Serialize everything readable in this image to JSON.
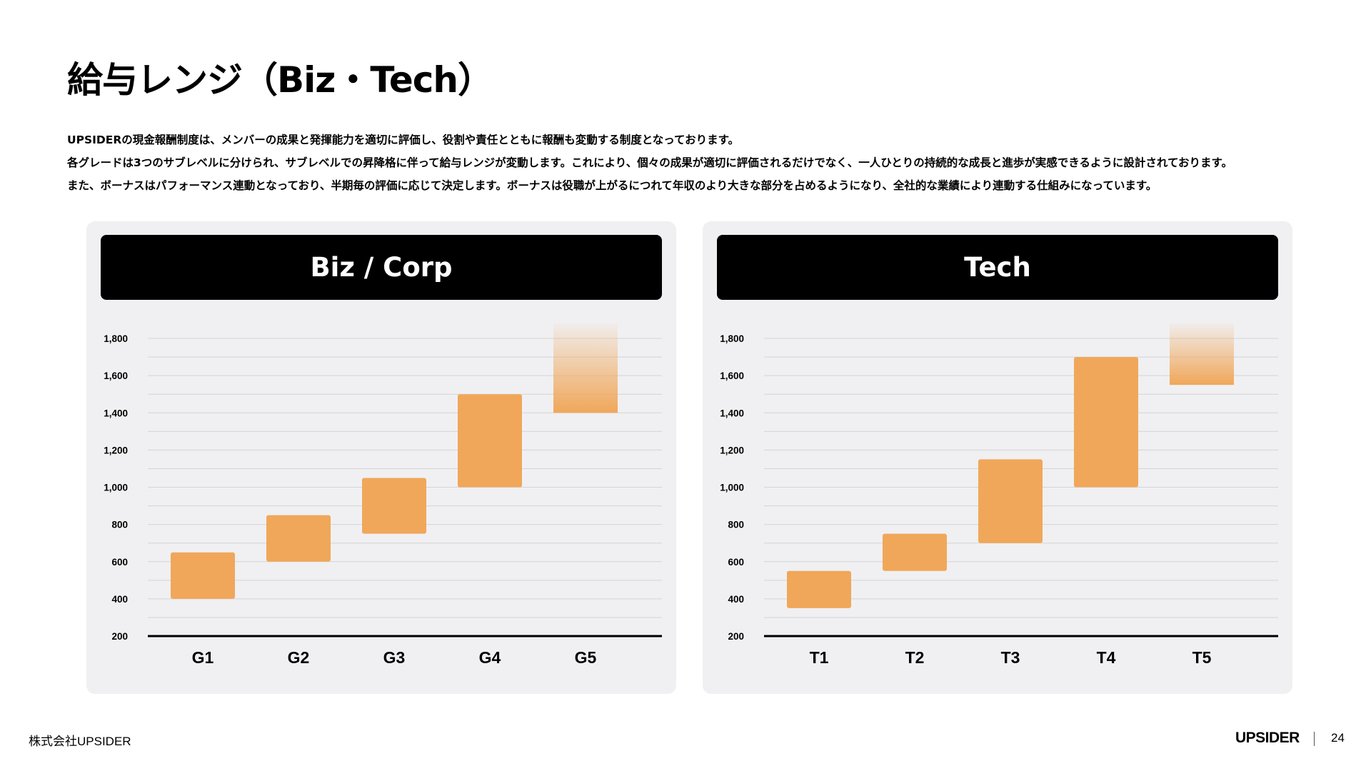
{
  "page": {
    "title": "給与レンジ（Biz・Tech）",
    "description": [
      "UPSIDERの現金報酬制度は、メンバーの成果と発揮能力を適切に評価し、役割や責任とともに報酬も変動する制度となっております。",
      "各グレードは3つのサブレベルに分けられ、サブレベルでの昇降格に伴って給与レンジが変動します。これにより、個々の成果が適切に評価されるだけでなく、一人ひとりの持続的な成長と進歩が実感できるように設計されております。",
      "また、ボーナスはパフォーマンス連動となっており、半期毎の評価に応じて決定します。ボーナスは役職が上がるにつれて年収のより大きな部分を占めるようになり、全社的な業績により連動する仕組みになっています。"
    ],
    "footer": {
      "company": "株式会社UPSIDER",
      "logo": "UPSIDER",
      "page_number": "24"
    }
  },
  "colors": {
    "bar": "#f0a75a",
    "panel_bg": "#f0f0f2",
    "header_bg": "#000000",
    "grid": "#d4d4d4",
    "baseline": "#000000"
  },
  "chart_data": [
    {
      "type": "bar",
      "title": "Biz / Corp",
      "categories": [
        "G1",
        "G2",
        "G3",
        "G4",
        "G5"
      ],
      "ranges": [
        [
          400,
          650
        ],
        [
          600,
          850
        ],
        [
          750,
          1050
        ],
        [
          1000,
          1500
        ],
        [
          1400,
          1880
        ]
      ],
      "open_ended_top": [
        false,
        false,
        false,
        false,
        true
      ],
      "yticks": [
        "1,800",
        "1,600",
        "1,400",
        "1,200",
        "1,000",
        "800",
        "600",
        "400",
        "200"
      ],
      "ylim": [
        200,
        1800
      ],
      "grid": true
    },
    {
      "type": "bar",
      "title": "Tech",
      "categories": [
        "T1",
        "T2",
        "T3",
        "T4",
        "T5"
      ],
      "ranges": [
        [
          350,
          550
        ],
        [
          550,
          750
        ],
        [
          700,
          1150
        ],
        [
          1000,
          1700
        ],
        [
          1550,
          1880
        ]
      ],
      "open_ended_top": [
        false,
        false,
        false,
        false,
        true
      ],
      "yticks": [
        "1,800",
        "1,600",
        "1,400",
        "1,200",
        "1,000",
        "800",
        "600",
        "400",
        "200"
      ],
      "ylim": [
        200,
        1800
      ],
      "grid": true
    }
  ]
}
